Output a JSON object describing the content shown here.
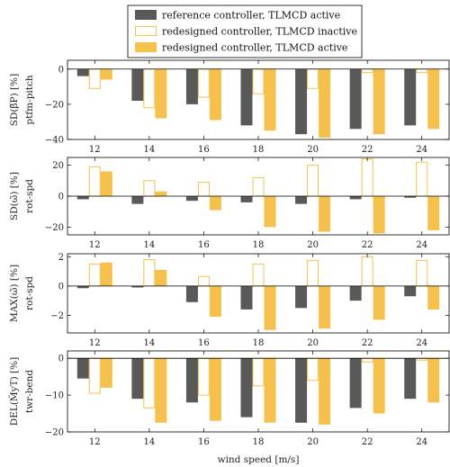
{
  "legend": [
    {
      "label": "reference controller, TLMCD active",
      "style": "fill",
      "color": "#595959"
    },
    {
      "label": "redesigned controller, TLMCD inactive",
      "style": "outline",
      "color": "#f5c04c"
    },
    {
      "label": "redesigned controller, TLMCD active",
      "style": "fill",
      "color": "#f5c04c"
    }
  ],
  "chart_data": [
    {
      "type": "bar",
      "ylabel": "SD(β̃P) [%]",
      "ylabel_sub": "ptfm-pitch",
      "ylim": [
        -40,
        5
      ],
      "yticks": [
        0,
        -20,
        -40
      ],
      "categories": [
        "12",
        "14",
        "16",
        "18",
        "20",
        "22",
        "24"
      ],
      "series": [
        {
          "name": "reference controller, TLMCD active",
          "values": [
            -4,
            -18,
            -20,
            -32,
            -37,
            -34,
            -32
          ]
        },
        {
          "name": "redesigned controller, TLMCD inactive",
          "values": [
            -11,
            -22,
            -16,
            -14,
            -11,
            -2,
            -2
          ]
        },
        {
          "name": "redesigned controller, TLMCD active",
          "values": [
            -6,
            -28,
            -29,
            -35,
            -39,
            -37,
            -34
          ]
        }
      ]
    },
    {
      "type": "bar",
      "ylabel": "SD(ω̃) [%]",
      "ylabel_sub": "rot-spd",
      "ylim": [
        -25,
        25
      ],
      "yticks": [
        20,
        0,
        -20
      ],
      "categories": [
        "12",
        "14",
        "16",
        "18",
        "20",
        "22",
        "24"
      ],
      "series": [
        {
          "name": "reference controller, TLMCD active",
          "values": [
            -2,
            -5,
            -3,
            -4,
            -5,
            -2,
            -1
          ]
        },
        {
          "name": "redesigned controller, TLMCD inactive",
          "values": [
            19,
            10,
            9,
            12,
            20,
            24,
            22
          ]
        },
        {
          "name": "redesigned controller, TLMCD active",
          "values": [
            16,
            3,
            -9,
            -20,
            -23,
            -24,
            -22
          ]
        }
      ]
    },
    {
      "type": "bar",
      "ylabel": "MAX(ω̃) [%]",
      "ylabel_sub": "rot-spd",
      "ylim": [
        -3.2,
        2.2
      ],
      "yticks": [
        2,
        0,
        -2
      ],
      "categories": [
        "12",
        "14",
        "16",
        "18",
        "20",
        "22",
        "24"
      ],
      "series": [
        {
          "name": "reference controller, TLMCD active",
          "values": [
            -0.15,
            -0.1,
            -1.1,
            -1.6,
            -1.5,
            -1.0,
            -0.7
          ]
        },
        {
          "name": "redesigned controller, TLMCD inactive",
          "values": [
            1.5,
            1.8,
            0.65,
            1.5,
            1.75,
            2.0,
            1.75
          ]
        },
        {
          "name": "redesigned controller, TLMCD active",
          "values": [
            1.6,
            1.1,
            -2.1,
            -3.0,
            -2.9,
            -2.3,
            -1.6
          ]
        }
      ]
    },
    {
      "type": "bar",
      "ylabel": "DEL(M̃yT) [%]",
      "ylabel_sub": "twr-bend",
      "ylim": [
        -20,
        2
      ],
      "yticks": [
        0,
        -10,
        -20
      ],
      "categories": [
        "12",
        "14",
        "16",
        "18",
        "20",
        "22",
        "24"
      ],
      "xlabel": "wind speed [m/s]",
      "series": [
        {
          "name": "reference controller, TLMCD active",
          "values": [
            -5.5,
            -11,
            -12,
            -16,
            -17.5,
            -13.5,
            -11
          ]
        },
        {
          "name": "redesigned controller, TLMCD inactive",
          "values": [
            -9.5,
            -13.5,
            -10,
            -7.5,
            -6,
            -1,
            -0.5
          ]
        },
        {
          "name": "redesigned controller, TLMCD active",
          "values": [
            -8,
            -17.5,
            -17,
            -17.5,
            -18,
            -15,
            -12
          ]
        }
      ]
    }
  ]
}
